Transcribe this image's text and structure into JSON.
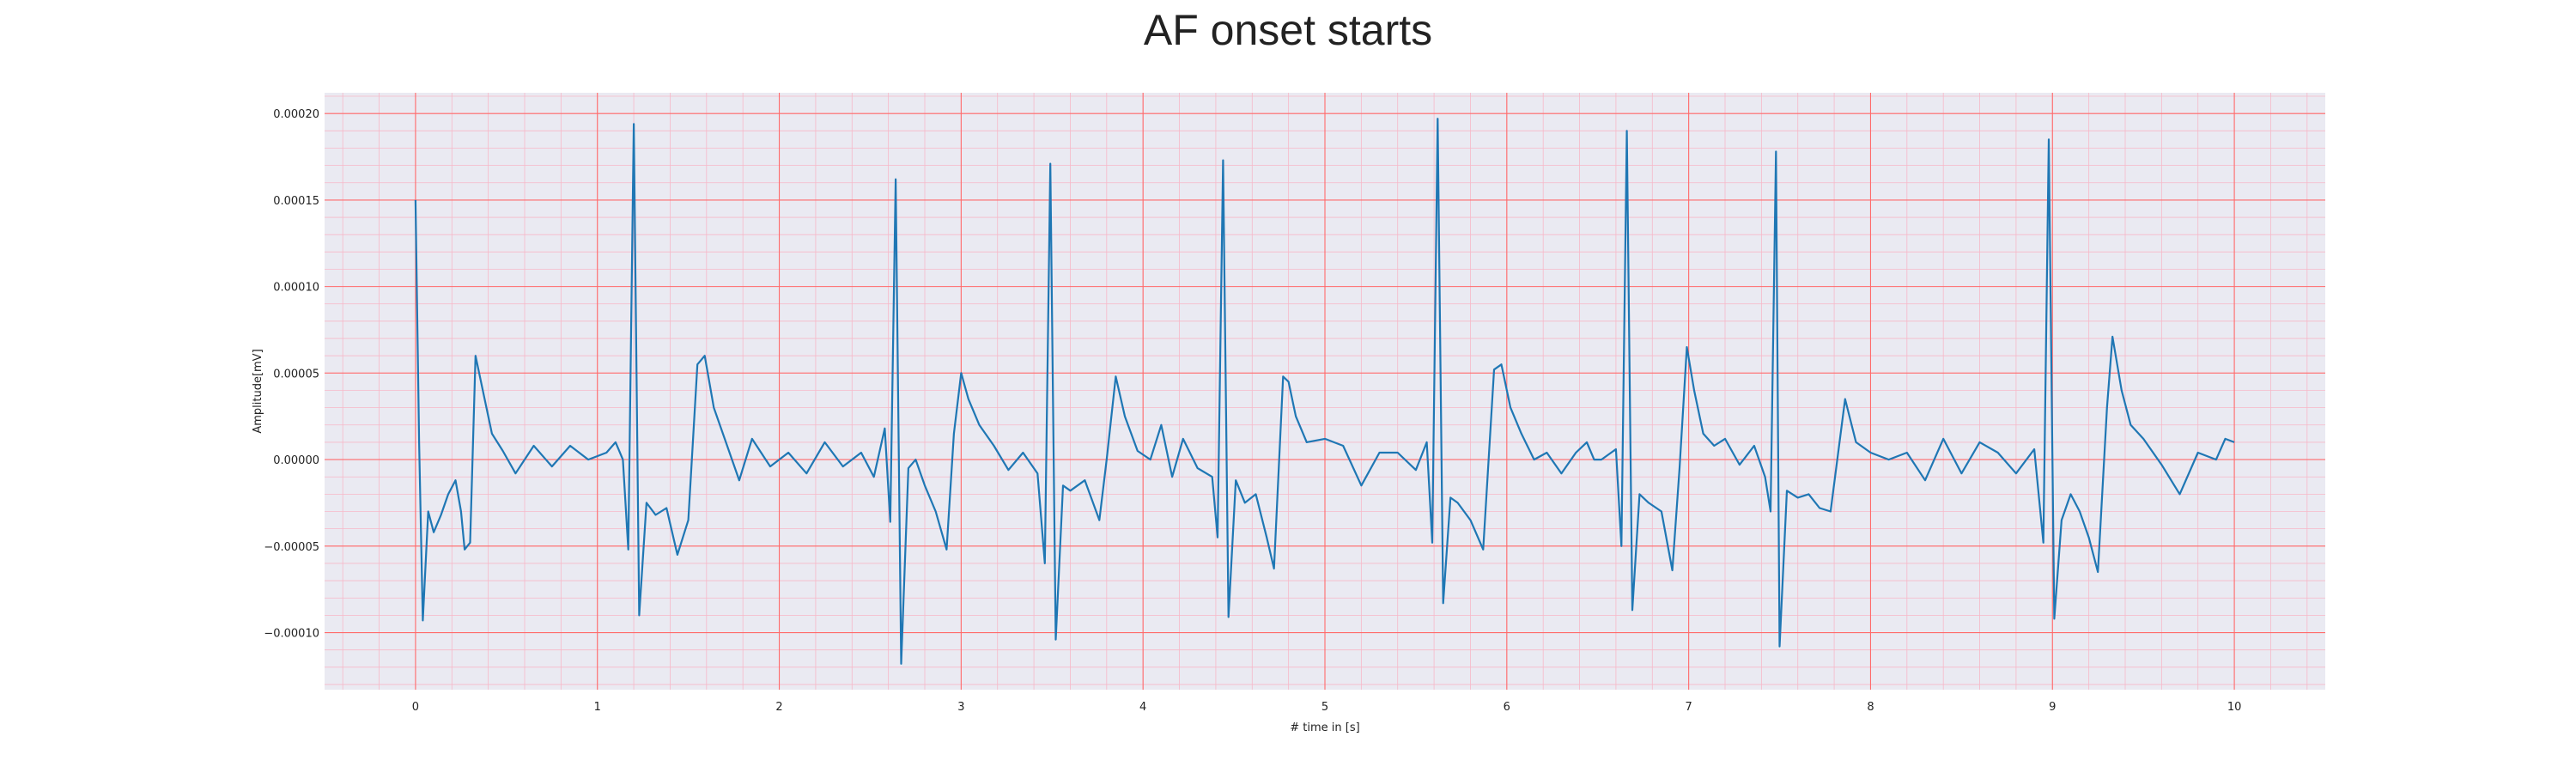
{
  "chart_data": {
    "type": "line",
    "title": "AF onset starts",
    "xlabel": "# time in [s]",
    "ylabel": "Amplitude[mV]",
    "xlim": [
      -0.5,
      10.5
    ],
    "ylim": [
      -0.000133,
      0.000212
    ],
    "x_ticks": [
      0,
      1,
      2,
      3,
      4,
      5,
      6,
      7,
      8,
      9,
      10
    ],
    "x_tick_labels": [
      "0",
      "1",
      "2",
      "3",
      "4",
      "5",
      "6",
      "7",
      "8",
      "9",
      "10"
    ],
    "y_ticks": [
      -0.0001,
      -5e-05,
      0.0,
      5e-05,
      0.0001,
      0.00015,
      0.0002
    ],
    "y_tick_labels": [
      "−0.00010",
      "−0.00005",
      "0.00000",
      "0.00005",
      "0.00010",
      "0.00015",
      "0.00020"
    ],
    "grid": true,
    "colors": {
      "background": "#eaeaf2",
      "major_grid": "#ff6b6b",
      "minor_grid": "#f7b8c8",
      "line": "#1f77b4"
    },
    "series": [
      {
        "values": [
          [
            0.0,
            0.00015
          ],
          [
            0.02,
            1e-05
          ],
          [
            0.04,
            -9.3e-05
          ],
          [
            0.07,
            -3e-05
          ],
          [
            0.1,
            -4.2e-05
          ],
          [
            0.14,
            -3.2e-05
          ],
          [
            0.18,
            -2e-05
          ],
          [
            0.22,
            -1.2e-05
          ],
          [
            0.25,
            -3e-05
          ],
          [
            0.27,
            -5.2e-05
          ],
          [
            0.3,
            -4.8e-05
          ],
          [
            0.33,
            6e-05
          ],
          [
            0.38,
            3.5e-05
          ],
          [
            0.42,
            1.5e-05
          ],
          [
            0.48,
            5e-06
          ],
          [
            0.55,
            -8e-06
          ],
          [
            0.65,
            8e-06
          ],
          [
            0.75,
            -4e-06
          ],
          [
            0.85,
            8e-06
          ],
          [
            0.95,
            0.0
          ],
          [
            1.05,
            4e-06
          ],
          [
            1.1,
            1e-05
          ],
          [
            1.14,
            0.0
          ],
          [
            1.17,
            -5.2e-05
          ],
          [
            1.2,
            0.000194
          ],
          [
            1.23,
            -9e-05
          ],
          [
            1.27,
            -2.5e-05
          ],
          [
            1.32,
            -3.2e-05
          ],
          [
            1.38,
            -2.8e-05
          ],
          [
            1.44,
            -5.5e-05
          ],
          [
            1.5,
            -3.5e-05
          ],
          [
            1.55,
            5.5e-05
          ],
          [
            1.59,
            6e-05
          ],
          [
            1.64,
            3e-05
          ],
          [
            1.7,
            1.2e-05
          ],
          [
            1.78,
            -1.2e-05
          ],
          [
            1.85,
            1.2e-05
          ],
          [
            1.95,
            -4e-06
          ],
          [
            2.05,
            4e-06
          ],
          [
            2.15,
            -8e-06
          ],
          [
            2.25,
            1e-05
          ],
          [
            2.35,
            -4e-06
          ],
          [
            2.45,
            4e-06
          ],
          [
            2.52,
            -1e-05
          ],
          [
            2.58,
            1.8e-05
          ],
          [
            2.61,
            -3.6e-05
          ],
          [
            2.64,
            0.000162
          ],
          [
            2.67,
            -0.000118
          ],
          [
            2.71,
            -5e-06
          ],
          [
            2.75,
            0.0
          ],
          [
            2.8,
            -1.5e-05
          ],
          [
            2.86,
            -3e-05
          ],
          [
            2.92,
            -5.2e-05
          ],
          [
            2.96,
            1.5e-05
          ],
          [
            3.0,
            5e-05
          ],
          [
            3.04,
            3.5e-05
          ],
          [
            3.1,
            2e-05
          ],
          [
            3.18,
            8e-06
          ],
          [
            3.26,
            -6e-06
          ],
          [
            3.34,
            4e-06
          ],
          [
            3.42,
            -8e-06
          ],
          [
            3.46,
            -6e-05
          ],
          [
            3.49,
            0.000171
          ],
          [
            3.52,
            -0.000104
          ],
          [
            3.56,
            -1.5e-05
          ],
          [
            3.6,
            -1.8e-05
          ],
          [
            3.68,
            -1.2e-05
          ],
          [
            3.76,
            -3.5e-05
          ],
          [
            3.8,
            0.0
          ],
          [
            3.85,
            4.8e-05
          ],
          [
            3.9,
            2.5e-05
          ],
          [
            3.97,
            5e-06
          ],
          [
            4.04,
            0.0
          ],
          [
            4.1,
            2e-05
          ],
          [
            4.16,
            -1e-05
          ],
          [
            4.22,
            1.2e-05
          ],
          [
            4.3,
            -5e-06
          ],
          [
            4.38,
            -1e-05
          ],
          [
            4.41,
            -4.5e-05
          ],
          [
            4.44,
            0.000173
          ],
          [
            4.47,
            -9.1e-05
          ],
          [
            4.51,
            -1.2e-05
          ],
          [
            4.56,
            -2.5e-05
          ],
          [
            4.62,
            -2e-05
          ],
          [
            4.68,
            -4.5e-05
          ],
          [
            4.72,
            -6.3e-05
          ],
          [
            4.77,
            4.8e-05
          ],
          [
            4.8,
            4.5e-05
          ],
          [
            4.84,
            2.5e-05
          ],
          [
            4.9,
            1e-05
          ],
          [
            5.0,
            1.2e-05
          ],
          [
            5.1,
            8e-06
          ],
          [
            5.2,
            -1.5e-05
          ],
          [
            5.3,
            4e-06
          ],
          [
            5.4,
            4e-06
          ],
          [
            5.5,
            -6e-06
          ],
          [
            5.56,
            1e-05
          ],
          [
            5.59,
            -4.8e-05
          ],
          [
            5.62,
            0.000197
          ],
          [
            5.65,
            -8.3e-05
          ],
          [
            5.69,
            -2.2e-05
          ],
          [
            5.73,
            -2.5e-05
          ],
          [
            5.8,
            -3.5e-05
          ],
          [
            5.87,
            -5.2e-05
          ],
          [
            5.93,
            5.2e-05
          ],
          [
            5.97,
            5.5e-05
          ],
          [
            6.02,
            3e-05
          ],
          [
            6.08,
            1.5e-05
          ],
          [
            6.15,
            0.0
          ],
          [
            6.22,
            4e-06
          ],
          [
            6.3,
            -8e-06
          ],
          [
            6.38,
            4e-06
          ],
          [
            6.44,
            1e-05
          ],
          [
            6.48,
            0.0
          ],
          [
            6.52,
            0.0
          ],
          [
            6.6,
            6e-06
          ],
          [
            6.63,
            -5e-05
          ],
          [
            6.66,
            0.00019
          ],
          [
            6.69,
            -8.7e-05
          ],
          [
            6.73,
            -2e-05
          ],
          [
            6.78,
            -2.5e-05
          ],
          [
            6.85,
            -3e-05
          ],
          [
            6.91,
            -6.4e-05
          ],
          [
            6.95,
            -5e-06
          ],
          [
            6.99,
            6.5e-05
          ],
          [
            7.03,
            4e-05
          ],
          [
            7.08,
            1.5e-05
          ],
          [
            7.14,
            8e-06
          ],
          [
            7.2,
            1.2e-05
          ],
          [
            7.28,
            -3e-06
          ],
          [
            7.36,
            8e-06
          ],
          [
            7.42,
            -1e-05
          ],
          [
            7.45,
            -3e-05
          ],
          [
            7.48,
            0.000178
          ],
          [
            7.5,
            -0.000108
          ],
          [
            7.54,
            -1.8e-05
          ],
          [
            7.6,
            -2.2e-05
          ],
          [
            7.66,
            -2e-05
          ],
          [
            7.72,
            -2.8e-05
          ],
          [
            7.78,
            -3e-05
          ],
          [
            7.86,
            3.5e-05
          ],
          [
            7.92,
            1e-05
          ],
          [
            8.0,
            4e-06
          ],
          [
            8.1,
            0.0
          ],
          [
            8.2,
            4e-06
          ],
          [
            8.3,
            -1.2e-05
          ],
          [
            8.4,
            1.2e-05
          ],
          [
            8.5,
            -8e-06
          ],
          [
            8.6,
            1e-05
          ],
          [
            8.7,
            4e-06
          ],
          [
            8.8,
            -8e-06
          ],
          [
            8.9,
            6e-06
          ],
          [
            8.95,
            -4.8e-05
          ],
          [
            8.98,
            0.000185
          ],
          [
            9.01,
            -9.2e-05
          ],
          [
            9.05,
            -3.5e-05
          ],
          [
            9.1,
            -2e-05
          ],
          [
            9.15,
            -3e-05
          ],
          [
            9.2,
            -4.5e-05
          ],
          [
            9.25,
            -6.5e-05
          ],
          [
            9.3,
            3e-05
          ],
          [
            9.33,
            7.1e-05
          ],
          [
            9.38,
            4e-05
          ],
          [
            9.43,
            2e-05
          ],
          [
            9.5,
            1.2e-05
          ],
          [
            9.6,
            -3e-06
          ],
          [
            9.7,
            -2e-05
          ],
          [
            9.8,
            4e-06
          ],
          [
            9.9,
            0.0
          ],
          [
            9.95,
            1.2e-05
          ],
          [
            10.0,
            1e-05
          ]
        ]
      }
    ]
  }
}
